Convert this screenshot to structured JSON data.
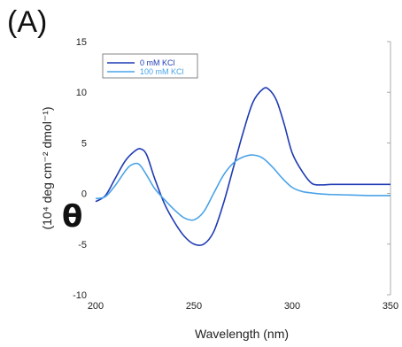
{
  "panel_label": "(A)",
  "colors": {
    "series_0": "#1f3bb3",
    "series_1": "#4aa3e8",
    "axis": "#999999",
    "text": "#222222"
  },
  "chart_data": {
    "type": "line",
    "title": "",
    "xlabel": "Wavelength (nm)",
    "ylabel_symbol": "θ",
    "ylabel": "(10⁴ deg cm⁻² dmol⁻¹)",
    "xlim": [
      200,
      350
    ],
    "ylim": [
      -10,
      15
    ],
    "xticks": [
      "200",
      "250",
      "300",
      "350"
    ],
    "yticks": [
      "-10",
      "-5",
      "0",
      "5",
      "10",
      "15"
    ],
    "grid": false,
    "legend_position": "top-left",
    "series": [
      {
        "name": "0 mM KCl",
        "color": "#1f3bb3",
        "x": [
          200,
          205,
          210,
          215,
          220,
          223,
          226,
          230,
          235,
          240,
          245,
          250,
          255,
          260,
          265,
          270,
          275,
          280,
          285,
          288,
          292,
          296,
          300,
          305,
          310,
          315,
          320,
          330,
          340,
          350
        ],
        "y": [
          -0.8,
          -0.2,
          1.5,
          3.2,
          4.2,
          4.4,
          3.8,
          1.5,
          -1.0,
          -2.8,
          -4.2,
          -5.0,
          -5.0,
          -3.8,
          -1.0,
          2.5,
          6.0,
          9.0,
          10.3,
          10.3,
          9.2,
          6.8,
          4.0,
          2.2,
          1.0,
          0.85,
          0.9,
          0.9,
          0.9,
          0.9
        ]
      },
      {
        "name": "100 mM KCl",
        "color": "#4aa3e8",
        "x": [
          200,
          205,
          210,
          215,
          218,
          222,
          226,
          230,
          235,
          240,
          245,
          250,
          255,
          260,
          265,
          270,
          275,
          280,
          285,
          290,
          295,
          300,
          305,
          310,
          315,
          320,
          330,
          340,
          350
        ],
        "y": [
          -0.5,
          -0.3,
          0.8,
          2.2,
          2.8,
          2.9,
          1.8,
          0.5,
          -0.6,
          -1.6,
          -2.4,
          -2.6,
          -1.8,
          0.0,
          1.8,
          3.0,
          3.6,
          3.8,
          3.5,
          2.6,
          1.5,
          0.6,
          0.2,
          0.05,
          -0.05,
          -0.1,
          -0.15,
          -0.2,
          -0.2
        ]
      }
    ]
  }
}
